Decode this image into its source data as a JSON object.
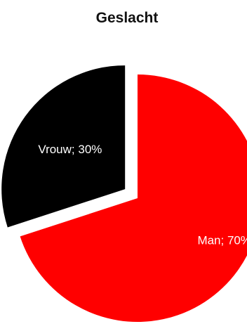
{
  "chart_data": {
    "type": "pie",
    "title": "Geslacht",
    "categories": [
      "Man",
      "Vrouw"
    ],
    "values": [
      70,
      30
    ],
    "labels": [
      "Man; 70%",
      "Vrouw; 30%"
    ],
    "colors": [
      "#ff0000",
      "#000000"
    ],
    "exploded": true
  }
}
